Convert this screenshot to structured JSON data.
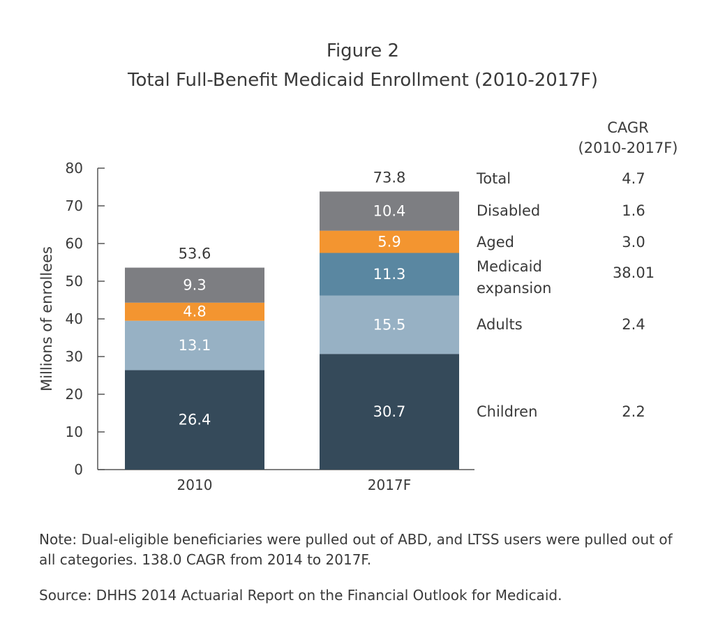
{
  "figure_label": "Figure 2",
  "chart_data": {
    "type": "bar",
    "stacked": true,
    "title": "Total Full-Benefit Medicaid Enrollment (2010-2017F)",
    "xlabel": "",
    "ylabel": "Millions of enrollees",
    "ylim": [
      0,
      80
    ],
    "yticks": [
      "0",
      "10",
      "20",
      "30",
      "40",
      "50",
      "60",
      "70",
      "80"
    ],
    "categories": [
      "2010",
      "2017F"
    ],
    "totals": [
      "53.6",
      "73.8"
    ],
    "series": [
      {
        "name": "Children",
        "color": "#354a5a",
        "text_color": "#ffffff",
        "values": [
          26.4,
          30.7
        ],
        "labels": [
          "26.4",
          "30.7"
        ]
      },
      {
        "name": "Adults",
        "color": "#97b1c4",
        "text_color": "#ffffff",
        "values": [
          13.1,
          15.5
        ],
        "labels": [
          "13.1",
          "15.5"
        ]
      },
      {
        "name": "Medicaid expansion",
        "color": "#5a87a1",
        "text_color": "#ffffff",
        "values": [
          0,
          11.3
        ],
        "labels": [
          "",
          "11.3"
        ]
      },
      {
        "name": "Aged",
        "color": "#f39530",
        "text_color": "#ffffff",
        "values": [
          4.8,
          5.9
        ],
        "labels": [
          "4.8",
          "5.9"
        ]
      },
      {
        "name": "Disabled",
        "color": "#7d7e82",
        "text_color": "#ffffff",
        "values": [
          9.3,
          10.4
        ],
        "labels": [
          "9.3",
          "10.4"
        ]
      }
    ],
    "cagr": {
      "header_line1": "CAGR",
      "header_line2": "(2010-2017F)",
      "rows": [
        {
          "label_lines": [
            "Total"
          ],
          "value": "4.7"
        },
        {
          "label_lines": [
            "Disabled"
          ],
          "value": "1.6"
        },
        {
          "label_lines": [
            "Aged"
          ],
          "value": "3.0"
        },
        {
          "label_lines": [
            "Medicaid",
            "expansion"
          ],
          "value": "38.01"
        },
        {
          "label_lines": [
            "Adults"
          ],
          "value": "2.4"
        },
        {
          "label_lines": [
            "Children"
          ],
          "value": "2.2"
        }
      ]
    },
    "grid": false,
    "legend": "right"
  },
  "note": "Note: Dual-eligible beneficiaries were pulled out of ABD, and LTSS users were pulled out of all categories. 138.0 CAGR from 2014 to 2017F.",
  "source": "Source: DHHS 2014 Actuarial Report on the Financial Outlook for Medicaid."
}
